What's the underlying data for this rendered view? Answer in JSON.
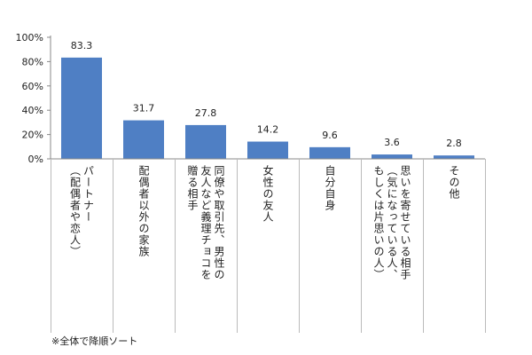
{
  "chart_data": {
    "type": "bar",
    "title": "",
    "xlabel": "",
    "ylabel": "",
    "ylim": [
      0,
      100
    ],
    "yticks": [
      "0%",
      "20%",
      "40%",
      "60%",
      "80%",
      "100%"
    ],
    "bar_color": "#4f7fc4",
    "categories": [
      {
        "lines": [
          "パートナー",
          "（配偶者や恋人）"
        ]
      },
      {
        "lines": [
          "配偶者以外の家族"
        ]
      },
      {
        "lines": [
          "同僚や取引先、男性の",
          "友人など義理チョコを",
          "贈る相手"
        ]
      },
      {
        "lines": [
          "女性の友人"
        ]
      },
      {
        "lines": [
          "自分自身"
        ]
      },
      {
        "lines": [
          "思いを寄せている相手",
          "（気になっている人、",
          "もしくは片思いの人）"
        ]
      },
      {
        "lines": [
          "その他"
        ]
      }
    ],
    "values": [
      83.3,
      31.7,
      27.8,
      14.2,
      9.6,
      3.6,
      2.8
    ],
    "value_labels": [
      "83.3",
      "31.7",
      "27.8",
      "14.2",
      "9.6",
      "3.6",
      "2.8"
    ]
  },
  "footnote": "※全体で降順ソート"
}
